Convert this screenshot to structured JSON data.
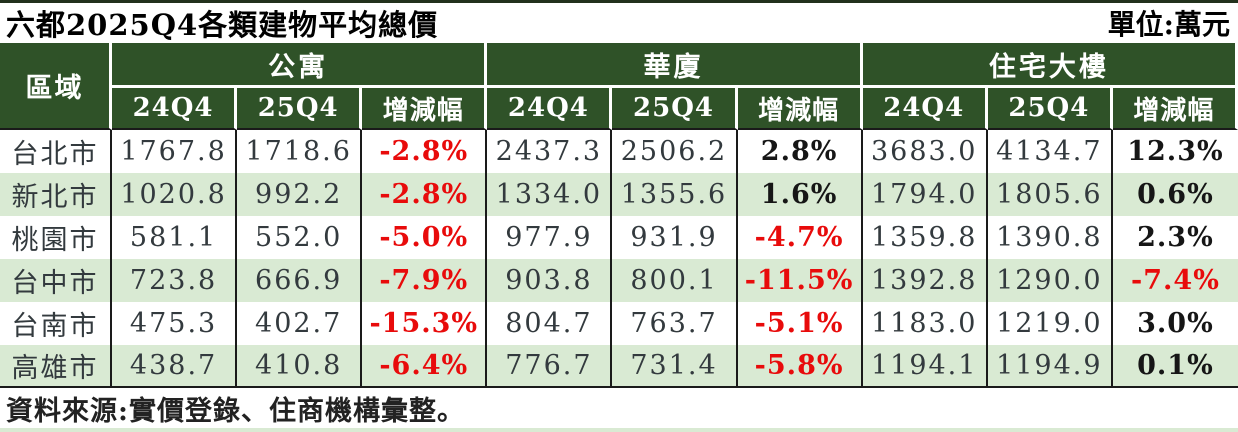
{
  "title": "六都2025Q4各類建物平均總價",
  "unit_label": "單位:萬元",
  "source_note": "資料來源:實價登錄、住商機構彙整。",
  "colors": {
    "header_green": "#2f5228",
    "stripe_green": "#d9ead3",
    "negative_red": "#e80b0b",
    "line_black": "#1a1a1a",
    "text_dark": "#333a3e",
    "top_strip": "#22311c"
  },
  "table": {
    "region_header": "區域",
    "groups": [
      {
        "label": "公寓"
      },
      {
        "label": "華廈"
      },
      {
        "label": "住宅大樓"
      }
    ],
    "sub_headers": [
      "24Q4",
      "25Q4",
      "增減幅"
    ],
    "rows": [
      {
        "region": "台北市",
        "cells": [
          "1767.8",
          "1718.6",
          "-2.8%",
          "2437.3",
          "2506.2",
          "2.8%",
          "3683.0",
          "4134.7",
          "12.3%"
        ]
      },
      {
        "region": "新北市",
        "cells": [
          "1020.8",
          "992.2",
          "-2.8%",
          "1334.0",
          "1355.6",
          "1.6%",
          "1794.0",
          "1805.6",
          "0.6%"
        ]
      },
      {
        "region": "桃園市",
        "cells": [
          "581.1",
          "552.0",
          "-5.0%",
          "977.9",
          "931.9",
          "-4.7%",
          "1359.8",
          "1390.8",
          "2.3%"
        ]
      },
      {
        "region": "台中市",
        "cells": [
          "723.8",
          "666.9",
          "-7.9%",
          "903.8",
          "800.1",
          "-11.5%",
          "1392.8",
          "1290.0",
          "-7.4%"
        ]
      },
      {
        "region": "台南市",
        "cells": [
          "475.3",
          "402.7",
          "-15.3%",
          "804.7",
          "763.7",
          "-5.1%",
          "1183.0",
          "1219.0",
          "3.0%"
        ]
      },
      {
        "region": "高雄市",
        "cells": [
          "438.7",
          "410.8",
          "-6.4%",
          "776.7",
          "731.4",
          "-5.8%",
          "1194.1",
          "1194.9",
          "0.1%"
        ]
      }
    ]
  },
  "chart_data": {
    "type": "table",
    "title": "六都2025Q4各類建物平均總價",
    "unit": "萬元",
    "categories": [
      "台北市",
      "新北市",
      "桃園市",
      "台中市",
      "台南市",
      "高雄市"
    ],
    "series": [
      {
        "name": "公寓 24Q4",
        "values": [
          1767.8,
          1020.8,
          581.1,
          723.8,
          475.3,
          438.7
        ]
      },
      {
        "name": "公寓 25Q4",
        "values": [
          1718.6,
          992.2,
          552.0,
          666.9,
          402.7,
          410.8
        ]
      },
      {
        "name": "公寓 增減幅(%)",
        "values": [
          -2.8,
          -2.8,
          -5.0,
          -7.9,
          -15.3,
          -6.4
        ]
      },
      {
        "name": "華廈 24Q4",
        "values": [
          2437.3,
          1334.0,
          977.9,
          903.8,
          804.7,
          776.7
        ]
      },
      {
        "name": "華廈 25Q4",
        "values": [
          2506.2,
          1355.6,
          931.9,
          800.1,
          763.7,
          731.4
        ]
      },
      {
        "name": "華廈 增減幅(%)",
        "values": [
          2.8,
          1.6,
          -4.7,
          -11.5,
          -5.1,
          -5.8
        ]
      },
      {
        "name": "住宅大樓 24Q4",
        "values": [
          3683.0,
          1794.0,
          1359.8,
          1392.8,
          1183.0,
          1194.1
        ]
      },
      {
        "name": "住宅大樓 25Q4",
        "values": [
          4134.7,
          1805.6,
          1390.8,
          1290.0,
          1219.0,
          1194.9
        ]
      },
      {
        "name": "住宅大樓 增減幅(%)",
        "values": [
          12.3,
          0.6,
          2.3,
          -7.4,
          3.0,
          0.1
        ]
      }
    ],
    "source": "資料來源:實價登錄、住商機構彙整。"
  }
}
